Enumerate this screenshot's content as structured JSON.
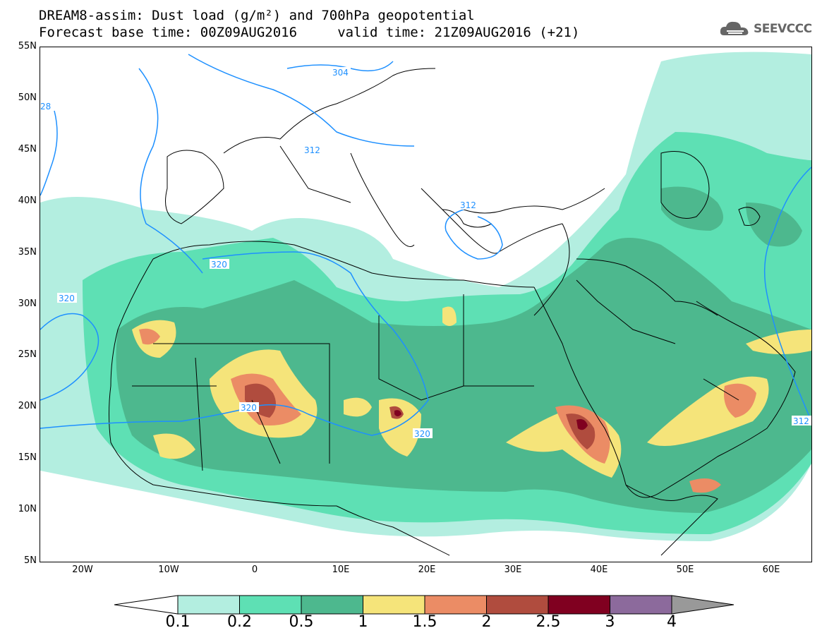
{
  "title": {
    "line1": "DREAM8-assim: Dust load (g/m²) and 700hPa geopotential",
    "line2": "Forecast base time: 00Z09AUG2016     valid time: 21Z09AUG2016 (+21)"
  },
  "logo": {
    "text": "SEEVCCC",
    "icon": "cloud-icon"
  },
  "map": {
    "lat_ticks": [
      "55N",
      "50N",
      "45N",
      "40N",
      "35N",
      "30N",
      "25N",
      "20N",
      "15N",
      "10N",
      "5N"
    ],
    "lon_ticks": [
      "20W",
      "10W",
      "0",
      "10E",
      "20E",
      "30E",
      "40E",
      "50E",
      "60E"
    ],
    "contours": [
      {
        "label": "304"
      },
      {
        "label": "312"
      },
      {
        "label": "312"
      },
      {
        "label": "320"
      },
      {
        "label": "320"
      },
      {
        "label": "320"
      },
      {
        "label": "320"
      },
      {
        "label": "28"
      },
      {
        "label": "312"
      }
    ]
  },
  "colorbar": {
    "labels": [
      "0.1",
      "0.2",
      "0.5",
      "1",
      "1.5",
      "2",
      "2.5",
      "3",
      "4"
    ],
    "colors": [
      "#b3eee0",
      "#5ee0b4",
      "#4db88e",
      "#f5e47a",
      "#eb8c65",
      "#b04c3e",
      "#800020",
      "#8c6a9c",
      "#999999"
    ]
  }
}
